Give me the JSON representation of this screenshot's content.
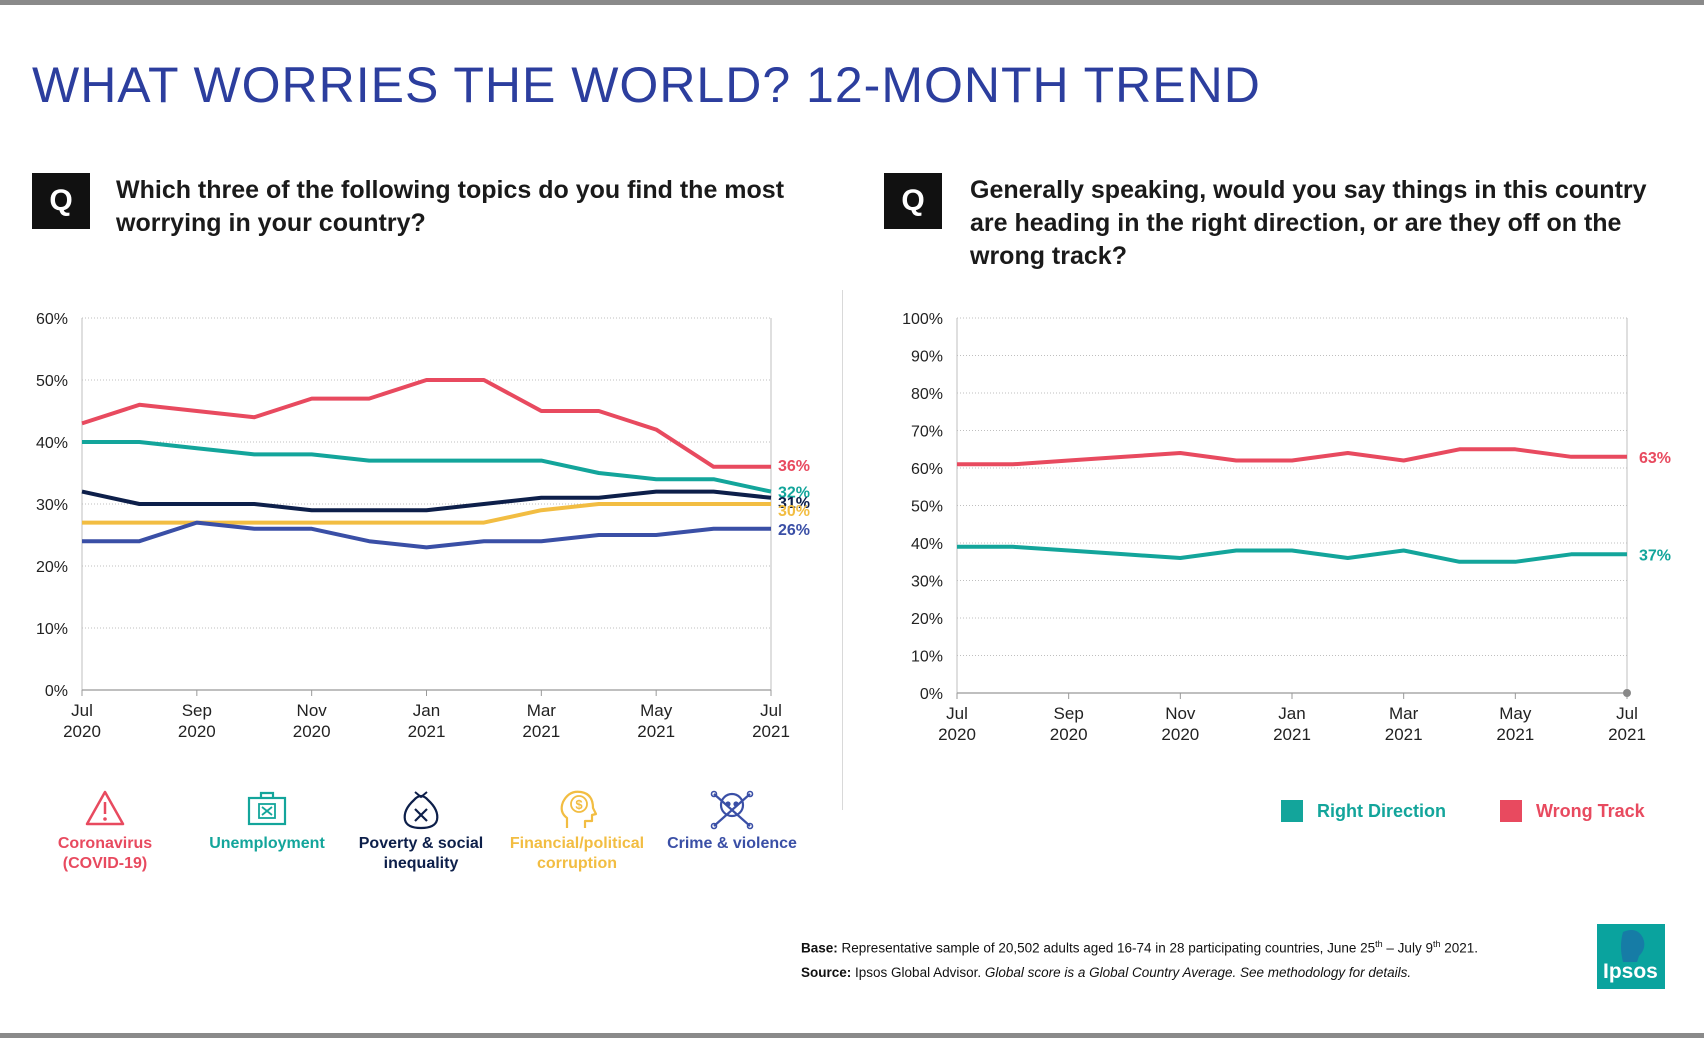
{
  "title": "WHAT WORRIES THE WORLD? 12-MONTH TREND",
  "left_question": {
    "badge": "Q",
    "text": "Which three of the following topics do you find the most worrying in your country?"
  },
  "right_question": {
    "badge": "Q",
    "text": "Generally speaking, would you say things in this country are heading in the right direction, or are they off on the wrong track?"
  },
  "colors": {
    "covid": "#e84a5f",
    "unemployment": "#13a59b",
    "poverty": "#0d1f4a",
    "financial": "#f2bd42",
    "crime": "#3a4fa6"
  },
  "chart_data": [
    {
      "type": "line",
      "x": [
        "Jul 2020",
        "Aug 2020",
        "Sep 2020",
        "Oct 2020",
        "Nov 2020",
        "Dec 2020",
        "Jan 2021",
        "Feb 2021",
        "Mar 2021",
        "Apr 2021",
        "May 2021",
        "Jun 2021",
        "Jul 2021"
      ],
      "x_tick_labels": [
        [
          "Jul",
          "2020"
        ],
        [
          "Sep",
          "2020"
        ],
        [
          "Nov",
          "2020"
        ],
        [
          "Jan",
          "2021"
        ],
        [
          "Mar",
          "2021"
        ],
        [
          "May",
          "2021"
        ],
        [
          "Jul",
          "2021"
        ]
      ],
      "y_tick_labels": [
        "0%",
        "10%",
        "20%",
        "30%",
        "40%",
        "50%",
        "60%"
      ],
      "ylim": [
        0,
        60
      ],
      "grid": true,
      "series": [
        {
          "key": "covid",
          "name": "Coronavirus (COVID-19)",
          "values": [
            43,
            46,
            45,
            44,
            47,
            47,
            50,
            50,
            45,
            45,
            42,
            36,
            36
          ],
          "end_label": "36%"
        },
        {
          "key": "unemployment",
          "name": "Unemployment",
          "values": [
            40,
            40,
            39,
            38,
            38,
            37,
            37,
            37,
            37,
            35,
            34,
            34,
            32
          ],
          "end_label": "32%"
        },
        {
          "key": "poverty",
          "name": "Poverty & social inequality",
          "values": [
            32,
            30,
            30,
            30,
            29,
            29,
            29,
            30,
            31,
            31,
            32,
            32,
            31
          ],
          "end_label": "31%"
        },
        {
          "key": "financial",
          "name": "Financial/political corruption",
          "values": [
            27,
            27,
            27,
            27,
            27,
            27,
            27,
            27,
            29,
            30,
            30,
            30,
            30
          ],
          "end_label": "30%"
        },
        {
          "key": "crime",
          "name": "Crime & violence",
          "values": [
            24,
            24,
            27,
            26,
            26,
            24,
            23,
            24,
            24,
            25,
            25,
            26,
            26
          ],
          "end_label": "26%"
        }
      ],
      "legend": [
        {
          "key": "covid",
          "line1": "Coronavirus",
          "line2": "(COVID-19)",
          "icon": "warning-icon"
        },
        {
          "key": "unemployment",
          "line1": "Unemployment",
          "line2": "",
          "icon": "briefcase-icon"
        },
        {
          "key": "poverty",
          "line1": "Poverty & social",
          "line2": "inequality",
          "icon": "money-bag-icon"
        },
        {
          "key": "financial",
          "line1": "Financial/political",
          "line2": "corruption",
          "icon": "head-dollar-icon"
        },
        {
          "key": "crime",
          "line1": "Crime & violence",
          "line2": "",
          "icon": "skull-crossbones-icon"
        }
      ]
    },
    {
      "type": "line",
      "x": [
        "Jul 2020",
        "Aug 2020",
        "Sep 2020",
        "Oct 2020",
        "Nov 2020",
        "Dec 2020",
        "Jan 2021",
        "Feb 2021",
        "Mar 2021",
        "Apr 2021",
        "May 2021",
        "Jun 2021",
        "Jul 2021"
      ],
      "x_tick_labels": [
        [
          "Jul",
          "2020"
        ],
        [
          "Sep",
          "2020"
        ],
        [
          "Nov",
          "2020"
        ],
        [
          "Jan",
          "2021"
        ],
        [
          "Mar",
          "2021"
        ],
        [
          "May",
          "2021"
        ],
        [
          "Jul",
          "2021"
        ]
      ],
      "y_tick_labels": [
        "0%",
        "10%",
        "20%",
        "30%",
        "40%",
        "50%",
        "60%",
        "70%",
        "80%",
        "90%",
        "100%"
      ],
      "ylim": [
        0,
        100
      ],
      "grid": true,
      "series": [
        {
          "key": "wrong",
          "name": "Wrong Track",
          "color": "#e84a5f",
          "values": [
            61,
            61,
            62,
            63,
            64,
            62,
            62,
            64,
            62,
            65,
            65,
            63,
            63
          ],
          "end_label": "63%"
        },
        {
          "key": "right",
          "name": "Right Direction",
          "color": "#13a59b",
          "values": [
            39,
            39,
            38,
            37,
            36,
            38,
            38,
            36,
            38,
            35,
            35,
            37,
            37
          ],
          "end_label": "37%"
        }
      ],
      "legend": [
        {
          "key": "right",
          "label": "Right Direction",
          "color": "#13a59b"
        },
        {
          "key": "wrong",
          "label": "Wrong Track",
          "color": "#e84a5f"
        }
      ]
    }
  ],
  "footer": {
    "base_label": "Base:",
    "base_text": "Representative sample of 20,502 adults aged 16-74 in 28 participating countries, June 25",
    "base_sup1": "th",
    "base_mid": " – July 9",
    "base_sup2": "th",
    "base_end": " 2021.",
    "source_label": "Source:",
    "source_text": "Ipsos Global Advisor.",
    "source_italic": "Global score is a Global Country Average. See methodology for details."
  },
  "logo_text": "Ipsos"
}
